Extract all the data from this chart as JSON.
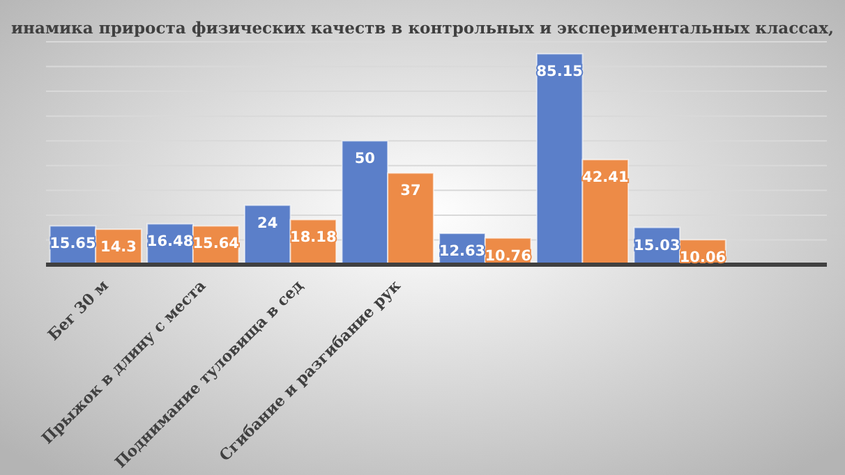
{
  "chart_data": {
    "type": "bar",
    "title": "инамика прироста физических качеств в контрольных и экспериментальных классах,",
    "categories": [
      "Бег 30 м",
      "Прыжок в длину с  места",
      "Поднимание туловища в сед",
      "Сгибание и разгибание рук",
      null,
      null,
      null,
      null
    ],
    "series": [
      {
        "color": "#5b7fc9",
        "values": [
          15.65,
          16.48,
          24,
          50,
          12.63,
          85.15,
          15.03,
          null
        ]
      },
      {
        "color": "#ed8b47",
        "values": [
          14.3,
          15.64,
          18.18,
          37,
          10.76,
          42.41,
          10.06,
          null
        ]
      }
    ],
    "ylim": [
      0,
      90
    ],
    "yticks": [
      {
        "value": 0,
        "label": null
      },
      {
        "value": 10,
        "label": null
      },
      {
        "value": 20,
        "label": null
      },
      {
        "value": 30,
        "label": null
      },
      {
        "value": 40,
        "label": null
      },
      {
        "value": 50,
        "label": null
      },
      {
        "value": 60,
        "label": null
      },
      {
        "value": 70,
        "label": null
      },
      {
        "value": 80,
        "label": null
      },
      {
        "value": 90,
        "label": null
      }
    ],
    "tick_labels": "x",
    "grid": "y",
    "data_labels": true
  }
}
